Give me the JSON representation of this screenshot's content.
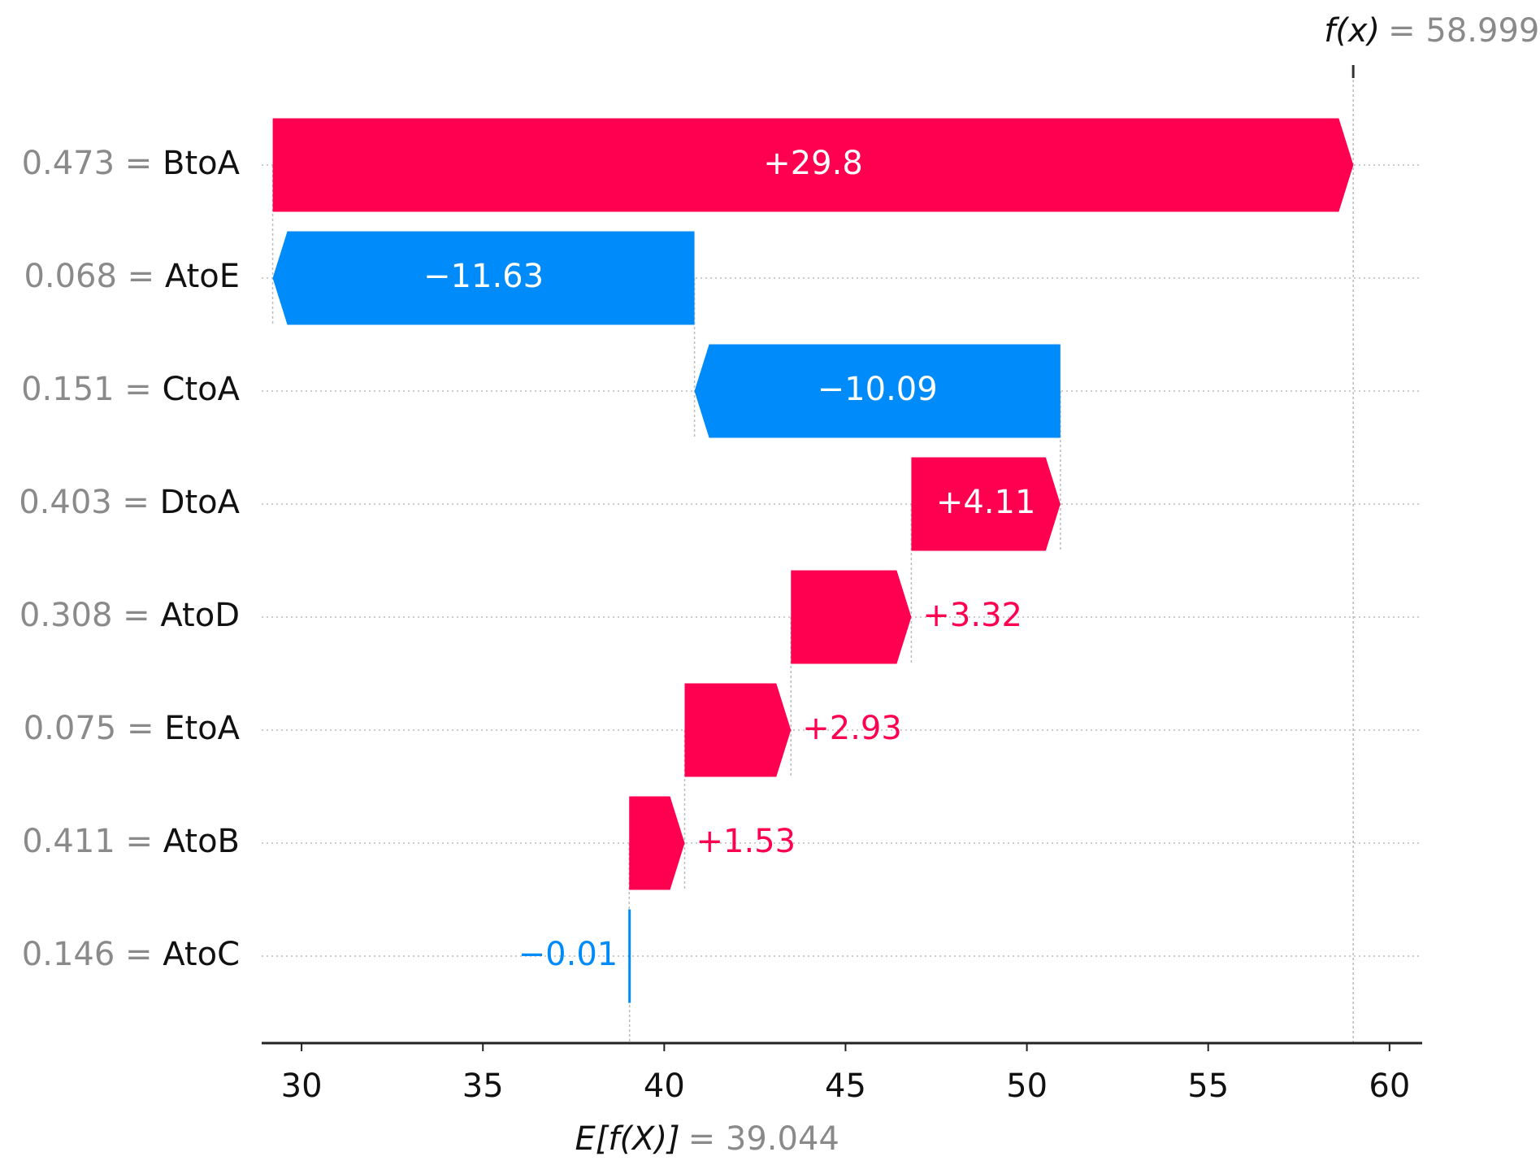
{
  "chart_data": {
    "type": "waterfall",
    "categories": [
      "BtoA",
      "AtoE",
      "CtoA",
      "DtoA",
      "AtoD",
      "EtoA",
      "AtoB",
      "AtoC"
    ],
    "feature_values": [
      {
        "value": 0.473,
        "label": "0.473 ="
      },
      {
        "value": 0.068,
        "label": "0.068 ="
      },
      {
        "value": 0.151,
        "label": "0.151 ="
      },
      {
        "value": 0.403,
        "label": "0.403 ="
      },
      {
        "value": 0.308,
        "label": "0.308 ="
      },
      {
        "value": 0.075,
        "label": "0.075 ="
      },
      {
        "value": 0.411,
        "label": "0.411 ="
      },
      {
        "value": 0.146,
        "label": "0.146 ="
      }
    ],
    "values": [
      29.8,
      -11.63,
      -10.09,
      4.11,
      3.32,
      2.93,
      1.53,
      -0.01
    ],
    "value_labels": [
      "+29.8",
      "−11.63",
      "−10.09",
      "+4.11",
      "+3.32",
      "+2.93",
      "+1.53",
      "−0.01"
    ],
    "positive_color": "#ff0051",
    "negative_color": "#008bfb",
    "base_name": "E[f(X)]",
    "base": {
      "value": 39.044,
      "label": "= 39.044"
    },
    "output_name": "f(x)",
    "output": {
      "value": 58.999,
      "label": "= 58.999"
    },
    "xlim": [
      28.9,
      60.9
    ],
    "xticks": [
      30,
      35,
      40,
      45,
      50,
      55,
      60
    ]
  }
}
